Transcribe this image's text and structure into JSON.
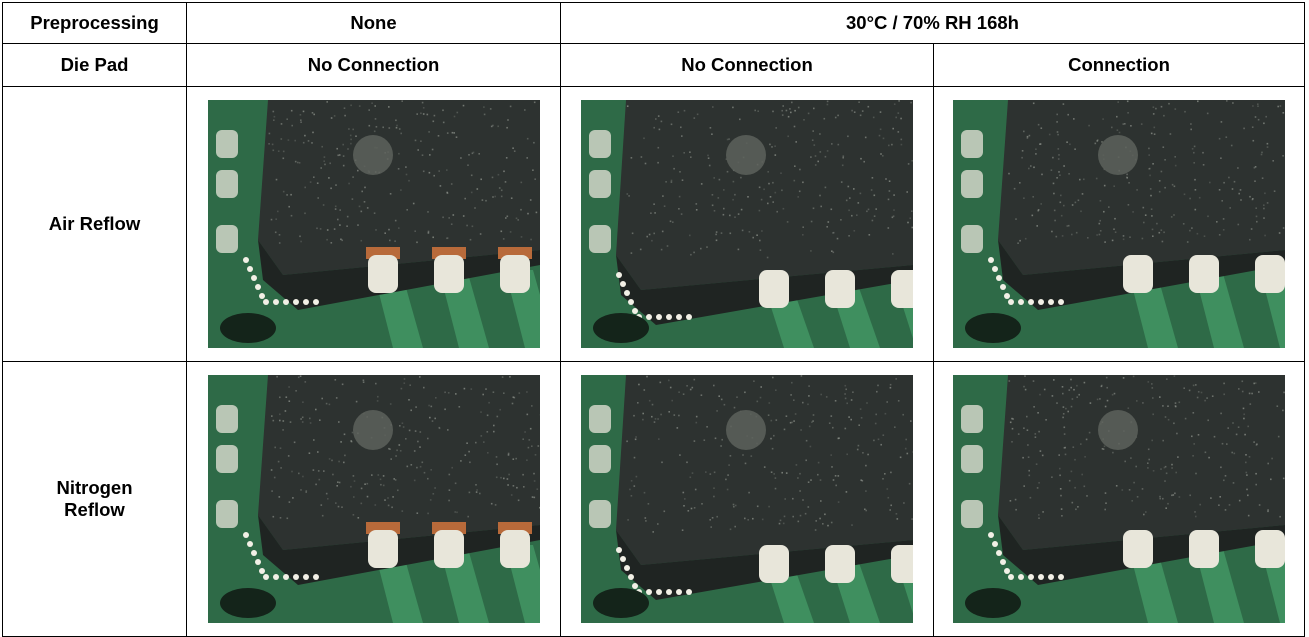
{
  "table": {
    "header1": {
      "col0": "Preprocessing",
      "col1": "None",
      "col23": "30°C / 70% RH 168h"
    },
    "header2": {
      "col0": "Die Pad",
      "col1": "No Connection",
      "col2": "No Connection",
      "col3": "Connection"
    },
    "rows": [
      {
        "label": "Air Reflow"
      },
      {
        "label": "Nitrogen Reflow"
      }
    ]
  },
  "colors": {
    "pcb_green": "#2e6a47",
    "trace_green": "#3f8f5f",
    "package_dark": "#2d3230",
    "package_side": "#1f2422",
    "lead_white": "#e8e6da",
    "copper": "#b86a3a"
  }
}
